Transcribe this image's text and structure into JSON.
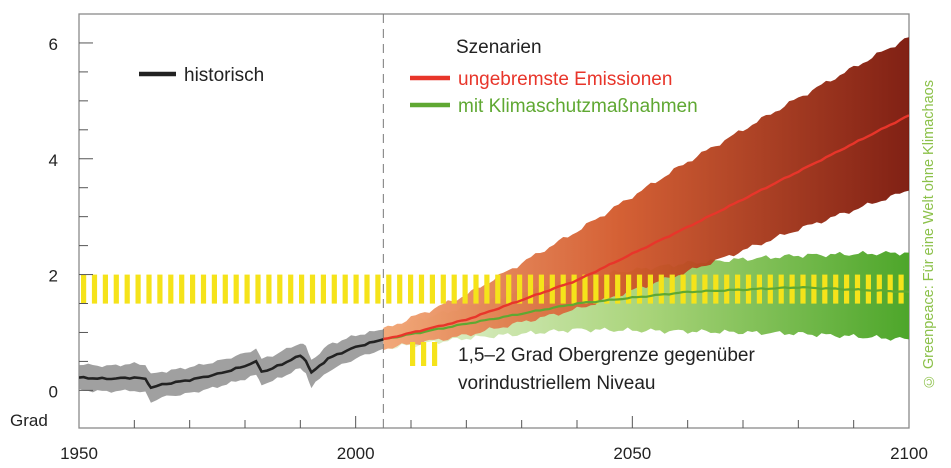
{
  "chart_data": {
    "type": "area",
    "xlabel": "",
    "ylabel": "Grad",
    "xlim": [
      1950,
      2100
    ],
    "ylim": [
      -0.65,
      6.5
    ],
    "x_ticks": [
      1950,
      2000,
      2050,
      2100
    ],
    "y_ticks": [
      0,
      2,
      4,
      6
    ],
    "divider_x": 2005,
    "grid": false,
    "legend": {
      "historic_label": "historisch",
      "scenarios_title": "Szenarien",
      "unchecked_label": "ungebremste Emissionen",
      "protection_label": "mit Klimaschutzmaßnahmen",
      "target_label_line1": "1,5–2 Grad Obergrenze gegenüber",
      "target_label_line2": "vorindustriellem Niveau"
    },
    "target_band": {
      "low": 1.5,
      "high": 2.0,
      "color": "#f5e31a"
    },
    "series": [
      {
        "name": "historisch",
        "color": "#222222",
        "band_color": "#8f8f8f",
        "x": [
          1950,
          1955,
          1960,
          1962,
          1963,
          1965,
          1970,
          1975,
          1980,
          1982,
          1983,
          1985,
          1990,
          1991,
          1992,
          1995,
          2000,
          2005
        ],
        "y": [
          0.22,
          0.2,
          0.22,
          0.2,
          0.05,
          0.1,
          0.18,
          0.28,
          0.42,
          0.5,
          0.32,
          0.38,
          0.6,
          0.52,
          0.3,
          0.55,
          0.75,
          0.88
        ],
        "low": [
          0.0,
          -0.02,
          0.0,
          -0.05,
          -0.2,
          -0.12,
          -0.05,
          0.06,
          0.2,
          0.26,
          0.1,
          0.16,
          0.38,
          0.3,
          0.06,
          0.33,
          0.55,
          0.72
        ],
        "high": [
          0.45,
          0.42,
          0.46,
          0.45,
          0.28,
          0.32,
          0.4,
          0.5,
          0.64,
          0.72,
          0.54,
          0.6,
          0.82,
          0.75,
          0.52,
          0.78,
          0.95,
          1.05
        ]
      },
      {
        "name": "ungebremste Emissionen",
        "color": "#e8352a",
        "band_color": "#b33318",
        "x": [
          2005,
          2020,
          2040,
          2060,
          2080,
          2100
        ],
        "y": [
          0.88,
          1.22,
          1.9,
          2.82,
          3.78,
          4.75
        ],
        "low": [
          0.72,
          0.95,
          1.4,
          2.05,
          2.78,
          3.45
        ],
        "high": [
          1.05,
          1.65,
          2.75,
          3.95,
          5.05,
          6.1
        ]
      },
      {
        "name": "mit Klimaschutzmaßnahmen",
        "color": "#5fa832",
        "band_color": "#6fb83f",
        "x": [
          2005,
          2020,
          2040,
          2060,
          2080,
          2100
        ],
        "y": [
          0.88,
          1.15,
          1.5,
          1.7,
          1.78,
          1.7
        ],
        "low": [
          0.72,
          0.9,
          1.05,
          1.02,
          0.98,
          0.88
        ],
        "high": [
          1.05,
          1.45,
          1.95,
          2.2,
          2.33,
          2.38
        ]
      }
    ]
  },
  "credit": "© Greenpeace: Für eine Welt ohne Klimachaos"
}
